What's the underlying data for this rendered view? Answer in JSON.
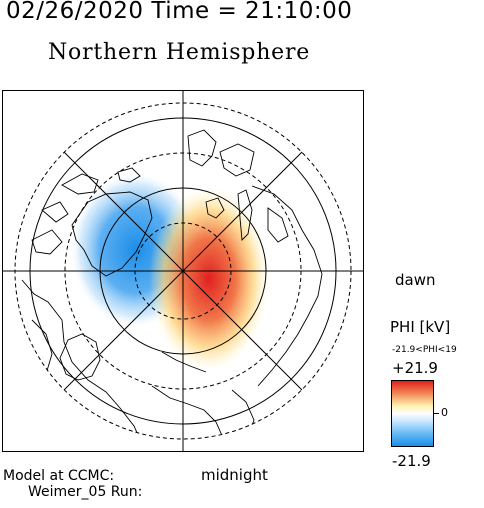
{
  "header": {
    "timestamp": "02/26/2020 Time = 21:10:00",
    "title": "Northern Hemisphere"
  },
  "labels": {
    "dawn": "dawn",
    "midnight": "midnight",
    "model": "Model at CCMC:",
    "run": "Weimer_05 Run:"
  },
  "colorbar": {
    "label": "PHI [kV]",
    "range_text": "-21.9<PHI<19",
    "max_label": "+21.9",
    "zero_label": "0",
    "min_label": "-21.9",
    "colors": {
      "positive": "#e02020",
      "zero": "#ffffff",
      "negative": "#1a8ee8"
    }
  }
}
